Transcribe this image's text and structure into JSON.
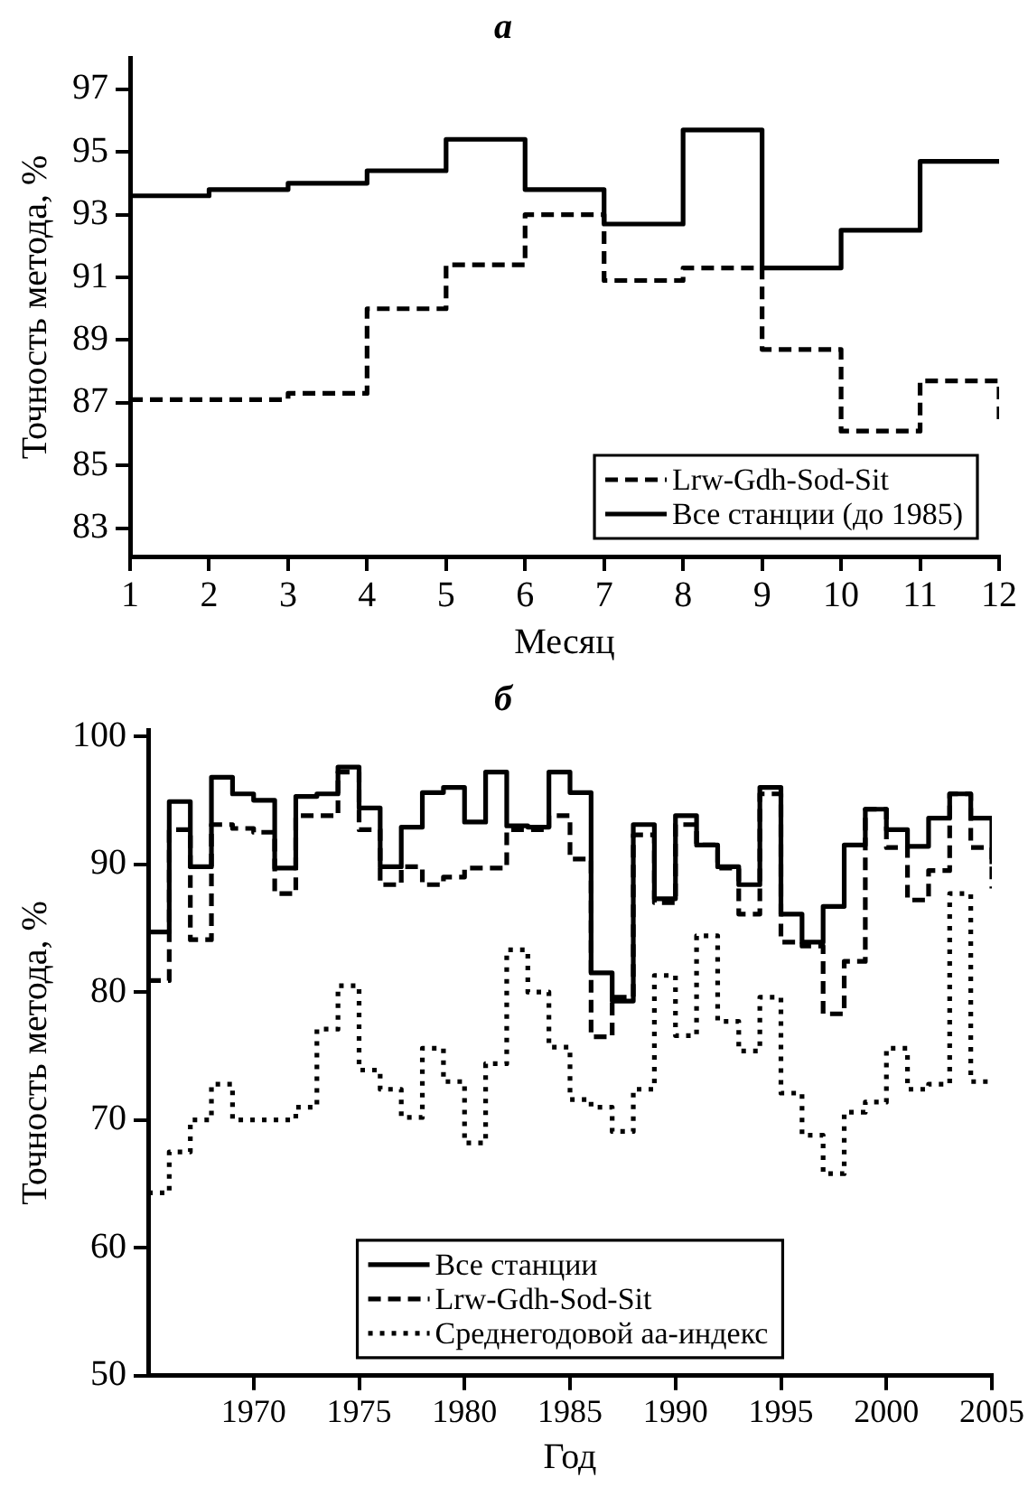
{
  "chart_data": [
    {
      "type": "step",
      "title": "а",
      "xlabel": "Месяц",
      "ylabel": "Точность метода, %",
      "x": [
        1,
        2,
        3,
        4,
        5,
        6,
        7,
        8,
        9,
        10,
        11,
        12
      ],
      "series": [
        {
          "name": "Lrw-Gdh-Sod-Sit",
          "color": "#000000",
          "line_style": "dashed",
          "values": [
            87.1,
            87.1,
            87.3,
            90.0,
            91.4,
            93.0,
            90.9,
            91.3,
            88.7,
            86.1,
            87.7,
            86.4
          ]
        },
        {
          "name": "Все станции (до 1985)",
          "color": "#000000",
          "line_style": "solid",
          "values": [
            93.6,
            93.8,
            94.0,
            94.4,
            95.4,
            93.8,
            92.7,
            95.7,
            91.3,
            92.5,
            94.7,
            94.7
          ]
        }
      ],
      "xlim": [
        1,
        12
      ],
      "xticks": [
        1,
        2,
        3,
        4,
        5,
        6,
        7,
        8,
        9,
        10,
        11,
        12
      ],
      "ylim": [
        82.1,
        98
      ],
      "yticks": [
        83,
        85,
        87,
        89,
        91,
        93,
        95,
        97
      ],
      "grid": false,
      "legend": "bottom right",
      "marker": "none"
    },
    {
      "type": "step",
      "title": "б",
      "xlabel": "Год",
      "ylabel": "Точность метода, %",
      "x": [
        1965,
        1966,
        1967,
        1968,
        1969,
        1970,
        1971,
        1972,
        1973,
        1974,
        1975,
        1976,
        1977,
        1978,
        1979,
        1980,
        1981,
        1982,
        1983,
        1984,
        1985,
        1986,
        1987,
        1988,
        1989,
        1990,
        1991,
        1992,
        1993,
        1994,
        1995,
        1996,
        1997,
        1998,
        1999,
        2000,
        2001,
        2002,
        2003,
        2004,
        2005
      ],
      "series": [
        {
          "name": "Все станции",
          "color": "#000000",
          "line_style": "solid",
          "values": [
            84.7,
            94.9,
            89.8,
            96.8,
            95.5,
            95.0,
            89.7,
            95.3,
            95.5,
            97.6,
            94.4,
            89.8,
            92.9,
            95.6,
            96.0,
            93.3,
            97.2,
            93.0,
            92.9,
            97.2,
            95.6,
            81.5,
            79.3,
            93.1,
            87.3,
            93.8,
            91.5,
            89.8,
            88.4,
            96.0,
            86.1,
            83.9,
            86.7,
            91.5,
            94.3,
            92.7,
            91.4,
            93.6,
            95.5,
            93.6,
            90.0
          ]
        },
        {
          "name": "Lrw-Gdh-Sod-Sit",
          "color": "#000000",
          "line_style": "dashed",
          "values": [
            80.9,
            92.7,
            84.1,
            93.1,
            92.8,
            92.5,
            87.7,
            93.8,
            93.8,
            97.2,
            92.7,
            88.4,
            89.8,
            88.4,
            89.0,
            89.7,
            89.7,
            92.7,
            92.7,
            93.8,
            90.4,
            76.5,
            79.6,
            92.3,
            87.0,
            93.1,
            91.5,
            89.7,
            86.1,
            95.5,
            83.9,
            83.6,
            78.3,
            82.4,
            94.3,
            91.3,
            87.2,
            89.5,
            95.5,
            91.3,
            88.1
          ]
        },
        {
          "name": "Среднегодовой aa-индекс",
          "color": "#000000",
          "line_style": "dotted",
          "values": [
            64.3,
            67.5,
            70.0,
            72.8,
            70.0,
            70.0,
            70.0,
            71.0,
            77.1,
            80.5,
            73.9,
            72.4,
            70.2,
            75.6,
            73.0,
            68.2,
            74.4,
            83.3,
            80.0,
            75.7,
            71.6,
            71.0,
            69.1,
            72.4,
            81.3,
            76.6,
            84.4,
            77.7,
            75.4,
            79.6,
            72.1,
            68.8,
            65.8,
            70.6,
            71.4,
            75.6,
            72.4,
            72.8,
            87.7,
            73.0,
            73.0
          ]
        }
      ],
      "xlim": [
        1965,
        2005
      ],
      "xticks": [
        1970,
        1975,
        1980,
        1985,
        1990,
        1995,
        2000,
        2005
      ],
      "ylim": [
        50,
        100.5
      ],
      "yticks": [
        50,
        60,
        70,
        80,
        90,
        100
      ],
      "grid": false,
      "legend": "bottom",
      "marker": "none"
    }
  ]
}
